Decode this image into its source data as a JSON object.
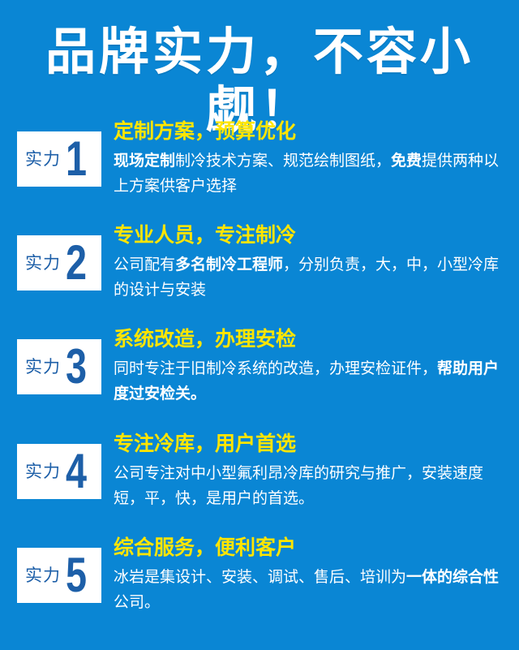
{
  "title": "品牌实力，不容小觑！",
  "badge_label": "实力",
  "items": [
    {
      "num": "1",
      "heading": "定制方案，预算优化",
      "desc": [
        {
          "t": "现场定制",
          "b": true
        },
        {
          "t": "制冷技术方案、规范绘制图纸，",
          "b": false
        },
        {
          "t": "免费",
          "b": true
        },
        {
          "t": "提供两种以上方案供客户选择",
          "b": false
        }
      ]
    },
    {
      "num": "2",
      "heading": "专业人员，专注制冷",
      "desc": [
        {
          "t": "公司配有",
          "b": false
        },
        {
          "t": "多名制冷工程师",
          "b": true
        },
        {
          "t": "，分别负责，大，中，小型冷库的设计与安装",
          "b": false
        }
      ]
    },
    {
      "num": "3",
      "heading": "系统改造，办理安检",
      "desc": [
        {
          "t": "同时专注于旧制冷系统的改造，办理安检证件，",
          "b": false
        },
        {
          "t": "帮助用户度过安检关。",
          "b": true
        }
      ]
    },
    {
      "num": "4",
      "heading": "专注冷库，用户首选",
      "desc": [
        {
          "t": "公司专注对中小型氟利昂冷库的研究与推广，安装速度短，平，快，是用户的首选。",
          "b": false
        }
      ]
    },
    {
      "num": "5",
      "heading": "综合服务，便利客户",
      "desc": [
        {
          "t": "冰岩是集设计、安装、调试、售后、培训为",
          "b": false
        },
        {
          "t": "一体的综合性",
          "b": true
        },
        {
          "t": "公司。",
          "b": false
        }
      ]
    }
  ]
}
